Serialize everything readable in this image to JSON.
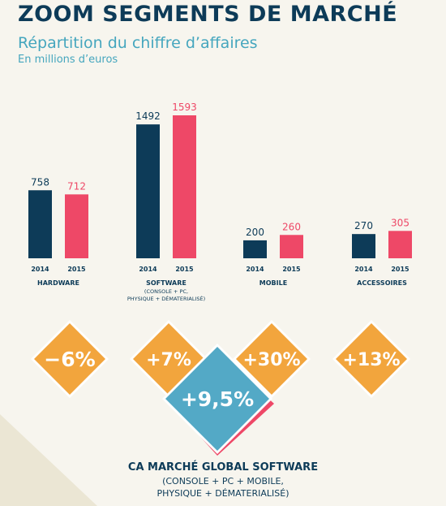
{
  "header": {
    "title": "ZOOM SEGMENTS DE MARCHÉ",
    "subtitle": "Répartition du chiffre d’affaires",
    "unit": "En millions d’euros"
  },
  "chart_data": {
    "type": "bar",
    "categories": [
      "HARDWARE",
      "SOFTWARE",
      "MOBILE",
      "ACCESSOIRES"
    ],
    "category_sublabels": [
      "",
      "(CONSOLE + PC,\nPHYSIQUE + DÉMATERIALISÉ)",
      "",
      ""
    ],
    "series": [
      {
        "name": "2014",
        "values": [
          758,
          1492,
          200,
          270
        ]
      },
      {
        "name": "2015",
        "values": [
          712,
          1593,
          260,
          305
        ]
      }
    ],
    "ylim": [
      0,
      1593
    ],
    "colors": {
      "2014": "#0d3b58",
      "2015": "#ee4867"
    }
  },
  "growth": [
    {
      "label": "−6%",
      "category": "HARDWARE",
      "color": "#f2a53d"
    },
    {
      "label": "+7%",
      "category": "SOFTWARE",
      "color": "#f2a53d"
    },
    {
      "label": "+30%",
      "category": "MOBILE",
      "color": "#f2a53d"
    },
    {
      "label": "+13%",
      "category": "ACCESSOIRES",
      "color": "#f2a53d"
    }
  ],
  "global": {
    "label": "+9,5%",
    "color": "#53a9c6",
    "shadow_color": "#ee4867",
    "title": "CA MARCHÉ GLOBAL SOFTWARE",
    "sub_lines": [
      "(CONSOLE + PC + MOBILE,",
      "PHYSIQUE + DÉMATERIALISÉ)"
    ]
  }
}
